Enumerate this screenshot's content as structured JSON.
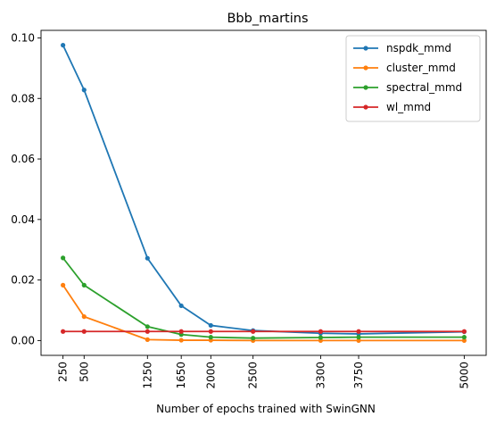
{
  "chart_data": {
    "type": "line",
    "title": "Bbb_martins",
    "xlabel": "Number of epochs trained with SwinGNN",
    "ylabel": "",
    "x": [
      250,
      500,
      1250,
      1650,
      2000,
      2500,
      3300,
      3750,
      5000
    ],
    "x_tick_labels": [
      "250",
      "500",
      "1250",
      "1650",
      "2000",
      "2500",
      "3300",
      "3750",
      "5000"
    ],
    "xlim": [
      -10,
      5260
    ],
    "ylim": [
      -0.0049,
      0.1025
    ],
    "y_ticks": [
      0.0,
      0.02,
      0.04,
      0.06,
      0.08,
      0.1
    ],
    "y_tick_labels": [
      "0.00",
      "0.02",
      "0.04",
      "0.06",
      "0.08",
      "0.10"
    ],
    "grid": false,
    "legend_position": "top-right",
    "series": [
      {
        "name": "nspdk_mmd",
        "color": "#1f77b4",
        "values": [
          0.0976,
          0.0828,
          0.0272,
          0.0115,
          0.005,
          0.0033,
          0.0024,
          0.0022,
          0.0029
        ]
      },
      {
        "name": "cluster_mmd",
        "color": "#ff7f0e",
        "values": [
          0.0183,
          0.0079,
          0.0003,
          0.0001,
          0.0001,
          0.0,
          0.0,
          0.0,
          0.0
        ]
      },
      {
        "name": "spectral_mmd",
        "color": "#2ca02c",
        "values": [
          0.0273,
          0.0183,
          0.0046,
          0.002,
          0.0011,
          0.0008,
          0.001,
          0.0011,
          0.0011
        ]
      },
      {
        "name": "wl_mmd",
        "color": "#d62728",
        "values": [
          0.003,
          0.003,
          0.003,
          0.003,
          0.003,
          0.003,
          0.003,
          0.003,
          0.003
        ]
      }
    ]
  }
}
